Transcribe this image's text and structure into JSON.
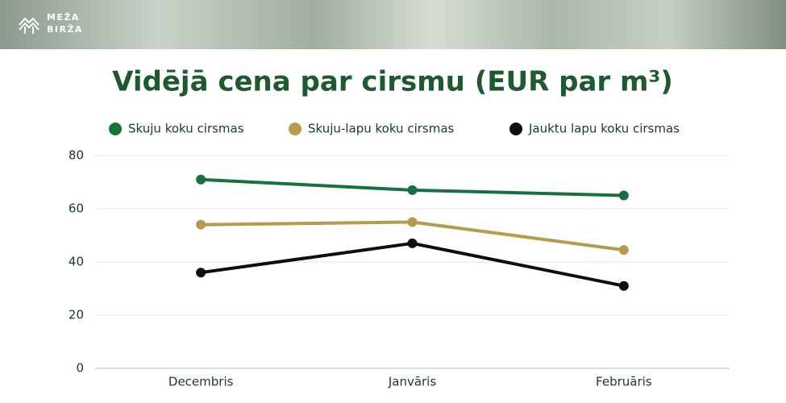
{
  "header": {
    "logo_lines": [
      "MEŽA",
      "BIRŽA"
    ]
  },
  "chart_data": {
    "type": "line",
    "title": "Vidējā cena par cirsmu (EUR par m³)",
    "categories": [
      "Decembris",
      "Janvāris",
      "Februāris"
    ],
    "series": [
      {
        "name": "Skuju koku cirsmas",
        "color": "#17703f",
        "values": [
          71,
          67,
          65
        ]
      },
      {
        "name": "Skuju-lapu koku cirsmas",
        "color": "#b69b4c",
        "values": [
          54,
          55,
          44.5
        ]
      },
      {
        "name": "Jauktu lapu koku cirsmas",
        "color": "#0d0d0d",
        "values": [
          36,
          47,
          31
        ]
      }
    ],
    "ylim": [
      0,
      80
    ],
    "yticks": [
      0,
      20,
      40,
      60,
      80
    ],
    "grid": true,
    "legend": "top"
  }
}
